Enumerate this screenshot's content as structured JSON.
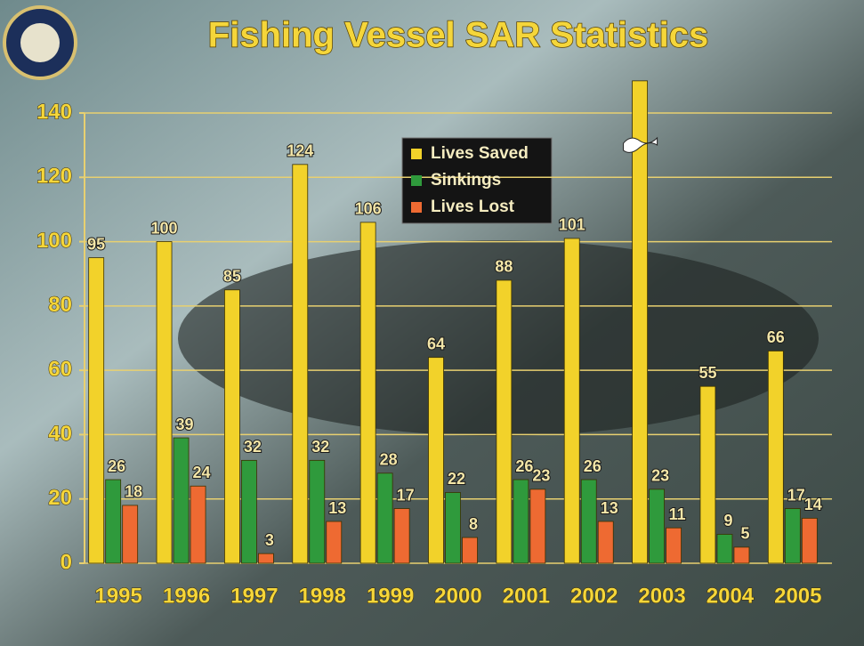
{
  "chart_data": {
    "type": "bar",
    "title": "Fishing Vessel SAR Statistics",
    "categories": [
      "1995",
      "1996",
      "1997",
      "1998",
      "1999",
      "2000",
      "2001",
      "2002",
      "2003",
      "2004",
      "2005"
    ],
    "series": [
      {
        "name": "Lives Saved",
        "color": "#f2d22a",
        "values": [
          95,
          100,
          85,
          124,
          106,
          64,
          88,
          101,
          150,
          55,
          66
        ]
      },
      {
        "name": "Sinkings",
        "color": "#2f9a3c",
        "values": [
          26,
          39,
          32,
          32,
          28,
          22,
          26,
          26,
          23,
          9,
          17
        ]
      },
      {
        "name": "Lives Lost",
        "color": "#ee6a32",
        "values": [
          18,
          24,
          3,
          13,
          17,
          8,
          23,
          13,
          11,
          5,
          14
        ]
      }
    ],
    "ylim": [
      0,
      140
    ],
    "yticks": [
      0,
      20,
      40,
      60,
      80,
      100,
      120,
      140
    ],
    "grid": true
  }
}
